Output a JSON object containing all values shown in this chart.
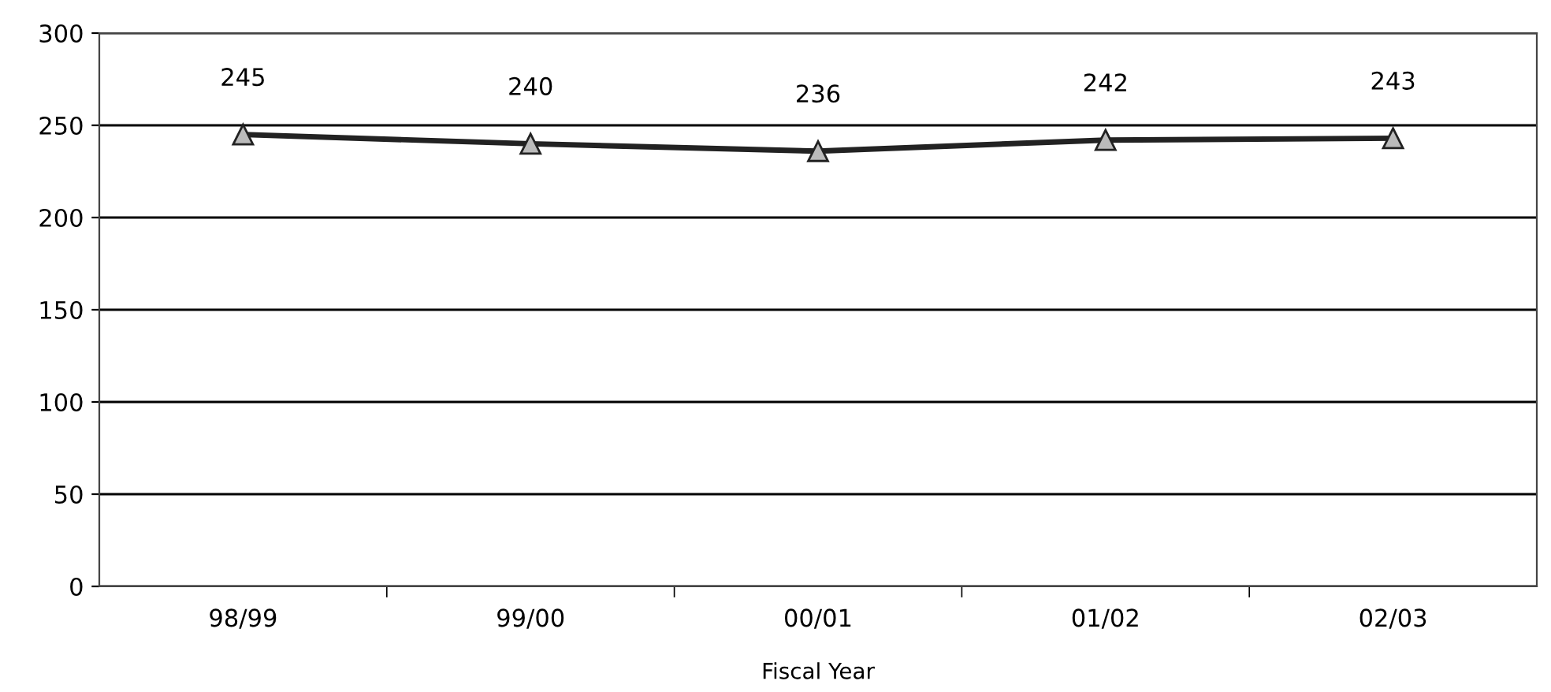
{
  "chart_data": {
    "type": "line",
    "xlabel": "Fiscal Year",
    "categories": [
      "98/99",
      "99/00",
      "00/01",
      "01/02",
      "02/03"
    ],
    "series": [
      {
        "color": "#222222",
        "values": [
          245,
          240,
          236,
          242,
          243
        ]
      }
    ],
    "ylim": [
      0,
      300
    ],
    "yticks": [
      0,
      50,
      100,
      150,
      200,
      250,
      300
    ],
    "grid": "y",
    "marker": "triangle",
    "line_style": "solid",
    "data_labels": true
  }
}
